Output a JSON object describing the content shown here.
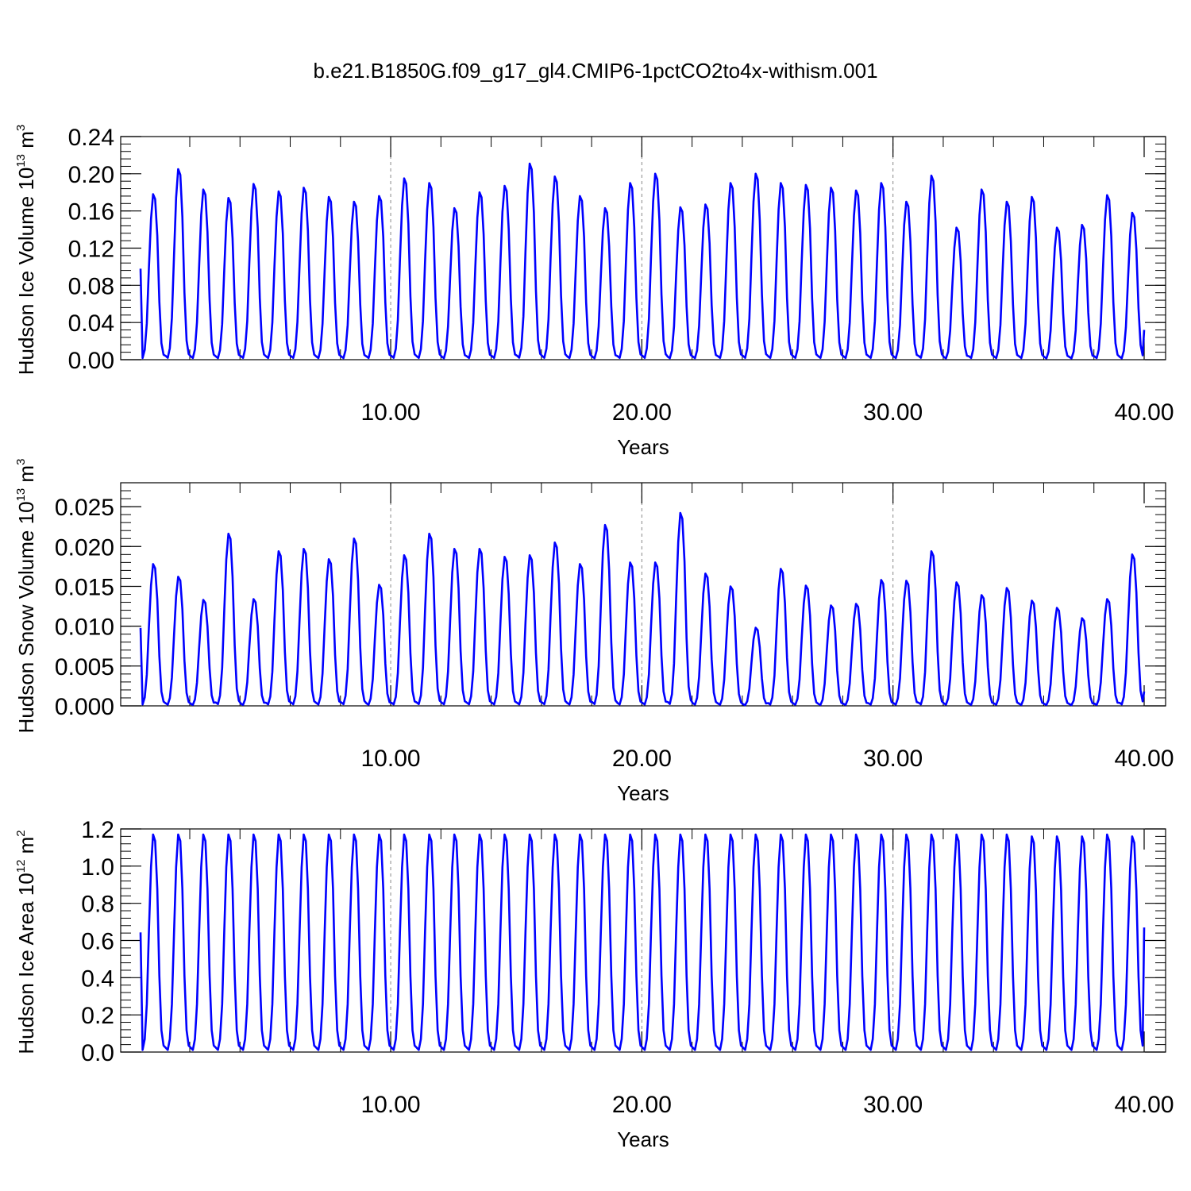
{
  "figure": {
    "title": "b.e21.B1850G.f09_g17_gl4.CMIP6-1pctCO2to4x-withism.001"
  },
  "colors": {
    "series": "#0000ff",
    "axis": "#000000",
    "grid": "#888888"
  },
  "chart_data": [
    {
      "type": "line",
      "ylabel": {
        "text": "Hudson Ice Volume 10",
        "exp": "13",
        "unit": " m",
        "unit_exp": "3"
      },
      "xlabel": "Years",
      "xlim": [
        0.04,
        40
      ],
      "ylim": [
        0,
        0.24
      ],
      "xticks": [
        10,
        20,
        30,
        40
      ],
      "xtick_labels": [
        "10.00",
        "20.00",
        "30.00",
        "40.00"
      ],
      "yticks": [
        0,
        0.04,
        0.08,
        0.12,
        0.16,
        0.2,
        0.24
      ],
      "ytick_labels": [
        "0.00",
        "0.04",
        "0.08",
        "0.12",
        "0.16",
        "0.20",
        "0.24"
      ],
      "grid": "vertical dashed at 10, 20, 30",
      "series": [
        {
          "start_x": 0.04,
          "step": 0.0833,
          "peaks": [
            0.178,
            0.205,
            0.183,
            0.174,
            0.189,
            0.181,
            0.185,
            0.175,
            0.17,
            0.176,
            0.195,
            0.19,
            0.163,
            0.18,
            0.187,
            0.211,
            0.197,
            0.176,
            0.163,
            0.19,
            0.2,
            0.164,
            0.167,
            0.19,
            0.2,
            0.19,
            0.188,
            0.185,
            0.182,
            0.19,
            0.17,
            0.198,
            0.142,
            0.183,
            0.17,
            0.175,
            0.142,
            0.145,
            0.177,
            0.158
          ],
          "end_value": 0.032
        }
      ]
    },
    {
      "type": "line",
      "ylabel": {
        "text": "Hudson Snow Volume 10",
        "exp": "13",
        "unit": " m",
        "unit_exp": "3"
      },
      "xlabel": "Years",
      "xlim": [
        0.04,
        40
      ],
      "ylim": [
        0,
        0.028
      ],
      "xticks": [
        10,
        20,
        30,
        40
      ],
      "xtick_labels": [
        "10.00",
        "20.00",
        "30.00",
        "40.00"
      ],
      "yticks": [
        0,
        0.005,
        0.01,
        0.015,
        0.02,
        0.025
      ],
      "ytick_labels": [
        "0.000",
        "0.005",
        "0.010",
        "0.015",
        "0.020",
        "0.025"
      ],
      "grid": "vertical dashed at 10, 20, 30",
      "series": [
        {
          "start_x": 0.04,
          "step": 0.0833,
          "peaks": [
            0.0178,
            0.0162,
            0.0133,
            0.0216,
            0.0134,
            0.0194,
            0.0197,
            0.0184,
            0.021,
            0.0152,
            0.0189,
            0.0216,
            0.0197,
            0.0197,
            0.0187,
            0.0189,
            0.0205,
            0.0178,
            0.0227,
            0.018,
            0.018,
            0.0242,
            0.0166,
            0.015,
            0.0098,
            0.0172,
            0.0151,
            0.0126,
            0.0128,
            0.0158,
            0.0157,
            0.0194,
            0.0155,
            0.0139,
            0.0148,
            0.0132,
            0.0123,
            0.011,
            0.0134,
            0.019
          ],
          "end_value": 0.0018
        }
      ]
    },
    {
      "type": "line",
      "ylabel": {
        "text": "Hudson Ice Area 10",
        "exp": "12",
        "unit": " m",
        "unit_exp": "2"
      },
      "xlabel": "Years",
      "xlim": [
        0.04,
        40
      ],
      "ylim": [
        0,
        1.2
      ],
      "xticks": [
        10,
        20,
        30,
        40
      ],
      "xtick_labels": [
        "10.00",
        "20.00",
        "30.00",
        "40.00"
      ],
      "yticks": [
        0,
        0.2,
        0.4,
        0.6,
        0.8,
        1.0,
        1.2
      ],
      "ytick_labels": [
        "0.0",
        "0.2",
        "0.4",
        "0.6",
        "0.8",
        "1.0",
        "1.2"
      ],
      "grid": "vertical dashed at 10, 20, 30",
      "series": [
        {
          "start_x": 0.04,
          "step": 0.0833,
          "peaks": [
            1.17,
            1.17,
            1.17,
            1.17,
            1.17,
            1.17,
            1.17,
            1.17,
            1.17,
            1.17,
            1.17,
            1.17,
            1.17,
            1.17,
            1.17,
            1.17,
            1.17,
            1.17,
            1.17,
            1.17,
            1.17,
            1.17,
            1.17,
            1.17,
            1.17,
            1.17,
            1.17,
            1.17,
            1.17,
            1.17,
            1.17,
            1.17,
            1.17,
            1.17,
            1.17,
            1.16,
            1.16,
            1.16,
            1.17,
            1.16
          ],
          "end_value": 0.67
        }
      ]
    }
  ]
}
